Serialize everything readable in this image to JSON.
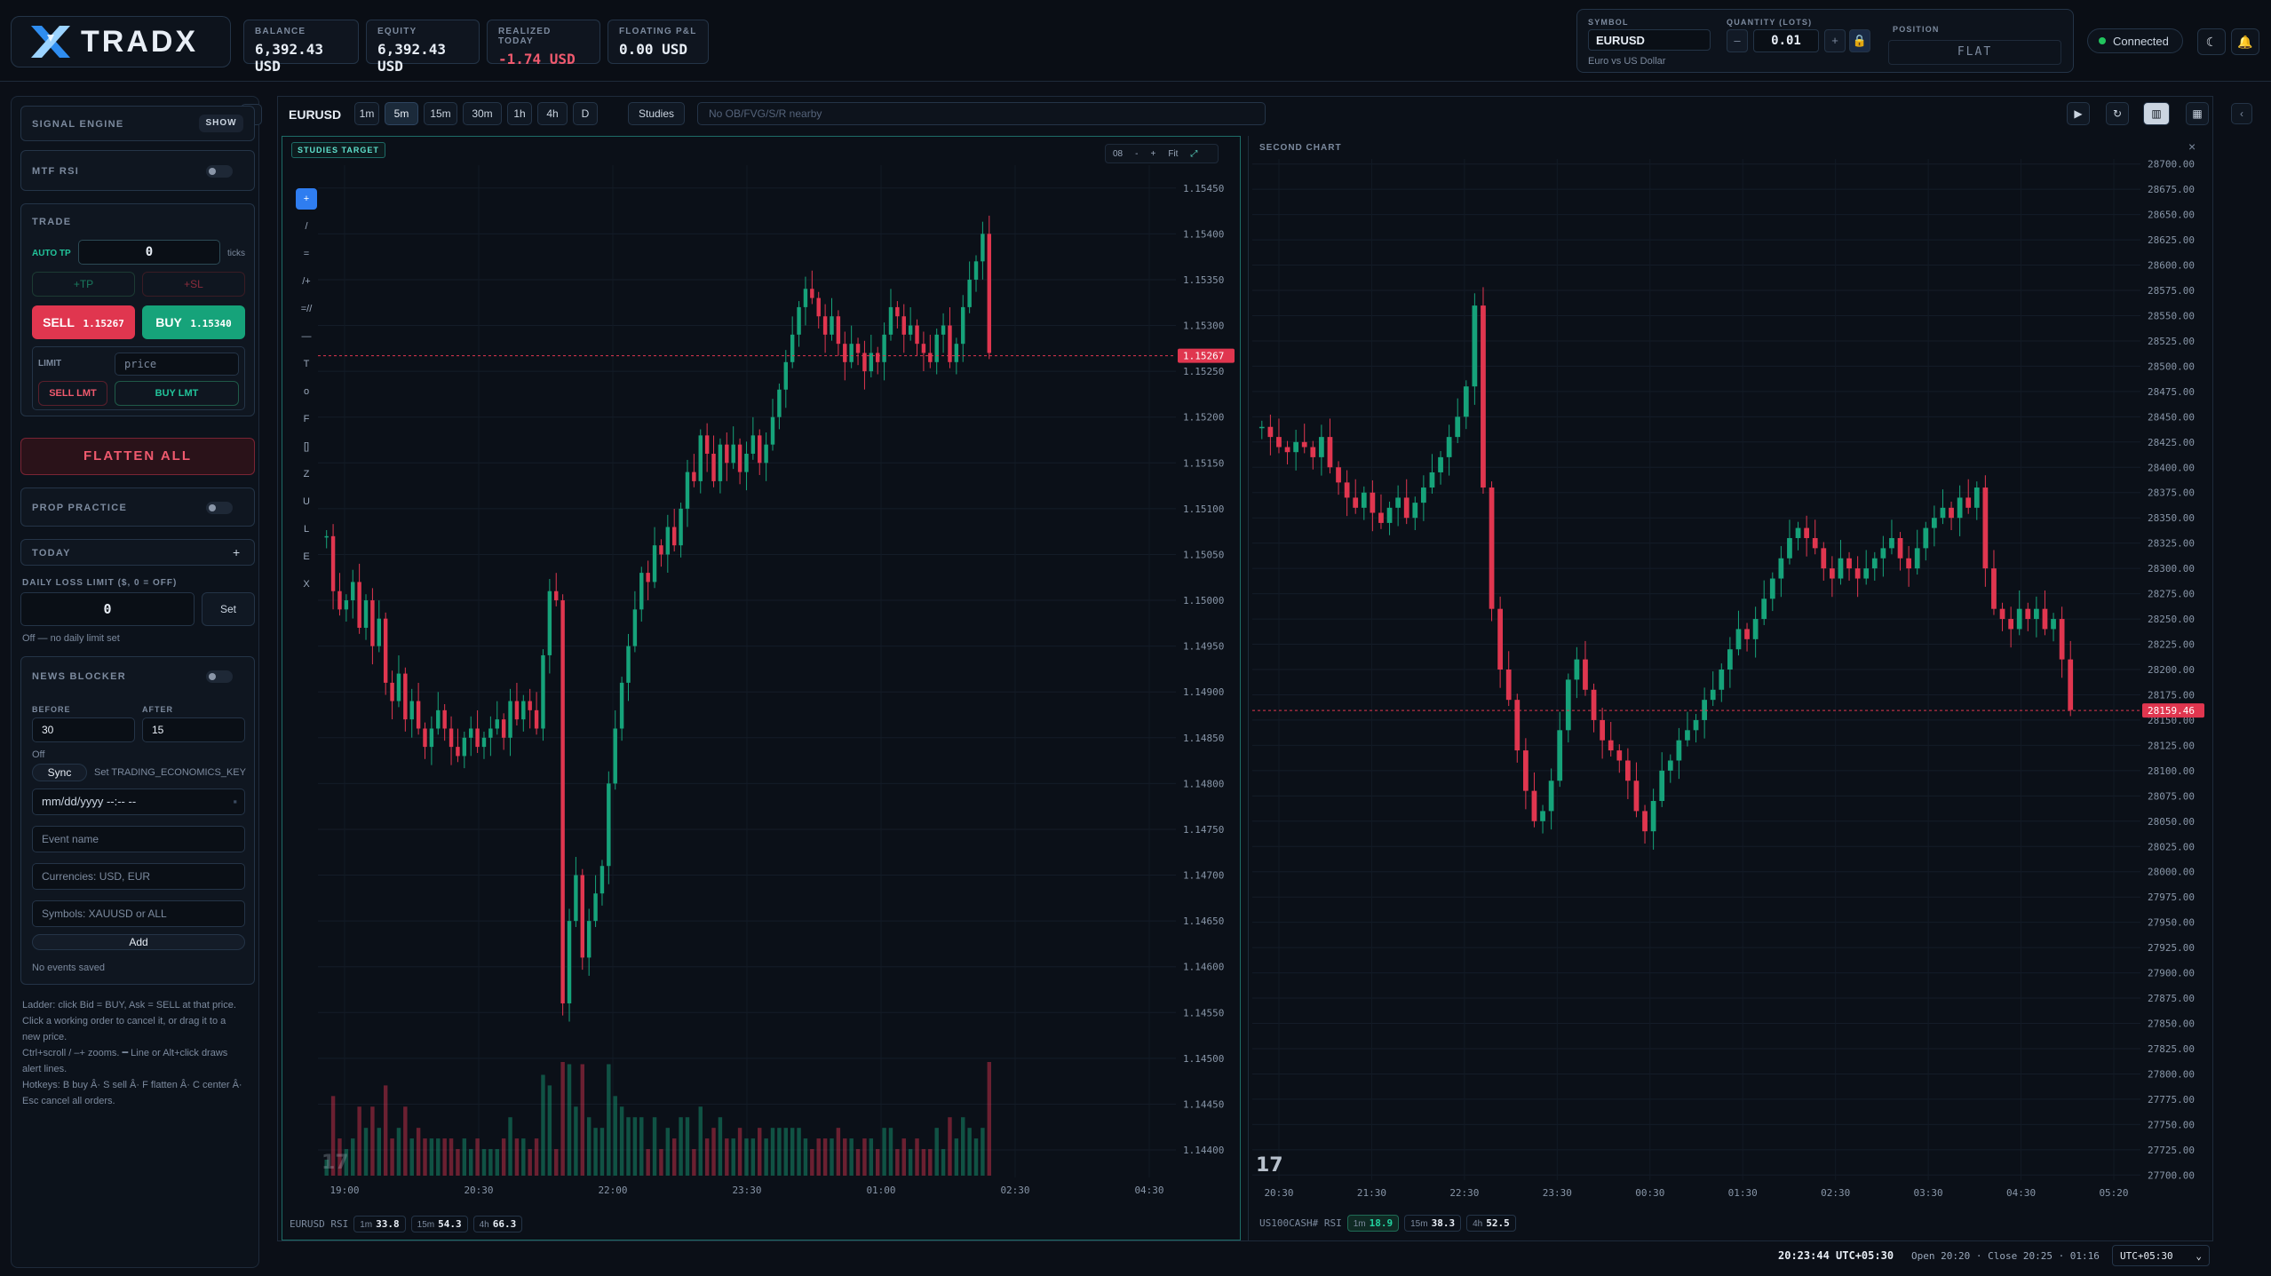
{
  "brand": {
    "name": "TRADX"
  },
  "stats": [
    {
      "label": "BALANCE",
      "value": "6,392.43 USD"
    },
    {
      "label": "EQUITY",
      "value": "6,392.43 USD"
    },
    {
      "label": "REALIZED TODAY",
      "value": "-1.74 USD"
    },
    {
      "label": "FLOATING P&L",
      "value": "0.00 USD"
    }
  ],
  "symbol_panel": {
    "symbol_label": "SYMBOL",
    "symbol": "EURUSD",
    "symbol_desc": "Euro vs US Dollar",
    "qty_label": "QUANTITY (LOTS)",
    "qty": "0.01",
    "minus": "–",
    "plus": "+",
    "position_label": "POSITION",
    "position": "FLAT"
  },
  "connection": "Connected",
  "left": {
    "signal_engine": "SIGNAL ENGINE",
    "show": "SHOW",
    "mtf_rsi": "MTF RSI",
    "trade": "TRADE",
    "auto_tp": "AUTO TP",
    "auto_tp_value": "0",
    "ticks": "ticks",
    "tp": "+TP",
    "sl": "+SL",
    "sell_label": "SELL",
    "sell_price": "1.15267",
    "buy_label": "BUY",
    "buy_price": "1.15340",
    "limit": "LIMIT",
    "price_placeholder": "price",
    "sell_lmt": "SELL LMT",
    "buy_lmt": "BUY LMT",
    "flatten_all": "FLATTEN ALL",
    "prop_practice": "PROP PRACTICE",
    "today": "TODAY",
    "today_plus": "+",
    "daily_loss_label": "DAILY LOSS LIMIT ($, 0 = OFF)",
    "daily_loss_value": "0",
    "set": "Set",
    "daily_loss_note": "Off — no daily limit set",
    "news_blocker": "NEWS BLOCKER",
    "before": "BEFORE",
    "after": "AFTER",
    "before_value": "30",
    "after_value": "15",
    "news_off": "Off",
    "sync": "Sync",
    "sync_note": "Set TRADING_ECONOMICS_KEY",
    "datetime_placeholder": "mm/dd/yyyy --:-- --",
    "event_placeholder": "Event name",
    "currencies_placeholder": "Currencies: USD, EUR",
    "symbols_placeholder": "Symbols: XAUUSD or ALL",
    "add": "Add",
    "no_events": "No events saved",
    "help": [
      "Ladder: click Bid = BUY, Ask = SELL at that price.",
      "Click a working order to cancel it, or drag it to a",
      "new price.",
      "Ctrl+scroll / –+ zooms. ━ Line or Alt+click draws",
      "alert lines.",
      "Hotkeys: B buy Â· S sell Â· F flatten Â· C center Â·",
      "Esc cancel all orders."
    ]
  },
  "chart_toolbar": {
    "symbol": "EURUSD",
    "timeframes": [
      "1m",
      "5m",
      "15m",
      "30m",
      "1h",
      "4h",
      "D"
    ],
    "active_tf": "5m",
    "studies": "Studies",
    "status": "No OB/FVG/S/R nearby"
  },
  "chart1": {
    "tag": "STUDIES TARGET",
    "controls": [
      "08",
      "-",
      "+",
      "Fit"
    ],
    "tools": [
      "+",
      "/",
      "=",
      "/+",
      "=//",
      "—",
      "T",
      "o",
      "F",
      "[]",
      "Z",
      "U",
      "L",
      "E",
      "X"
    ],
    "rsi_label": "EURUSD RSI",
    "rsi": [
      {
        "tf": "1m",
        "v": "33.8"
      },
      {
        "tf": "15m",
        "v": "54.3"
      },
      {
        "tf": "4h",
        "v": "66.3"
      }
    ]
  },
  "chart2": {
    "tag": "SECOND CHART",
    "close": "×",
    "rsi_label": "US100CASH# RSI",
    "rsi": [
      {
        "tf": "1m",
        "v": "18.9"
      },
      {
        "tf": "15m",
        "v": "38.3"
      },
      {
        "tf": "4h",
        "v": "52.5"
      }
    ]
  },
  "bottom": {
    "clock": "20:23:44 UTC+05:30",
    "session": "Open 20:20 · Close 20:25 · 01:16",
    "tz": "UTC+05:30"
  },
  "colors": {
    "up": "#16a37a",
    "down": "#e0364f",
    "accent": "#3b82f6"
  },
  "chart_data": [
    {
      "type": "candlestick",
      "symbol": "EURUSD",
      "timeframe": "5m",
      "y_ticks": [
        "1.15450",
        "1.15400",
        "1.15350",
        "1.15300",
        "1.15250",
        "1.15200",
        "1.15150",
        "1.15100",
        "1.15050",
        "1.15000",
        "1.14950",
        "1.14900",
        "1.14850",
        "1.14800",
        "1.14750",
        "1.14700",
        "1.14650",
        "1.14600",
        "1.14550",
        "1.14500",
        "1.14450",
        "1.14400"
      ],
      "ylim": [
        1.1437,
        1.15475
      ],
      "x_ticks": [
        "19:00",
        "20:30",
        "22:00",
        "23:30",
        "01:00",
        "02:30",
        "04:30"
      ],
      "last_price": "1.15267",
      "closes": [
        1.1507,
        1.1501,
        1.1499,
        1.15,
        1.1502,
        1.1497,
        1.15,
        1.1495,
        1.1498,
        1.1491,
        1.1489,
        1.1492,
        1.1487,
        1.1489,
        1.1486,
        1.1484,
        1.1486,
        1.1488,
        1.1486,
        1.1484,
        1.1483,
        1.1485,
        1.1486,
        1.1484,
        1.1485,
        1.1486,
        1.1487,
        1.1485,
        1.1489,
        1.1487,
        1.1489,
        1.1488,
        1.1486,
        1.1494,
        1.1501,
        1.15,
        1.1456,
        1.1465,
        1.147,
        1.1461,
        1.1465,
        1.1468,
        1.1471,
        1.148,
        1.1486,
        1.1491,
        1.1495,
        1.1499,
        1.1503,
        1.1502,
        1.1506,
        1.1505,
        1.1508,
        1.1506,
        1.151,
        1.1514,
        1.1513,
        1.1518,
        1.1516,
        1.1513,
        1.1517,
        1.1515,
        1.1517,
        1.1514,
        1.1516,
        1.1518,
        1.1515,
        1.1517,
        1.152,
        1.1523,
        1.1526,
        1.1529,
        1.1532,
        1.1534,
        1.1533,
        1.1531,
        1.1529,
        1.1531,
        1.1528,
        1.1526,
        1.1528,
        1.1527,
        1.1525,
        1.1527,
        1.1526,
        1.1529,
        1.1532,
        1.1531,
        1.1529,
        1.153,
        1.1528,
        1.1527,
        1.1526,
        1.1529,
        1.153,
        1.1526,
        1.1528,
        1.1532,
        1.1535,
        1.1537,
        1.154,
        1.1527
      ],
      "volume_shown": true
    },
    {
      "type": "candlestick",
      "symbol": "US100CASH#",
      "y_ticks": [
        "28700.00",
        "28675.00",
        "28650.00",
        "28625.00",
        "28600.00",
        "28575.00",
        "28550.00",
        "28525.00",
        "28500.00",
        "28475.00",
        "28450.00",
        "28425.00",
        "28400.00",
        "28375.00",
        "28350.00",
        "28325.00",
        "28300.00",
        "28275.00",
        "28250.00",
        "28225.00",
        "28200.00",
        "28175.00",
        "28150.00",
        "28125.00",
        "28100.00",
        "28075.00",
        "28050.00",
        "28025.00",
        "28000.00",
        "27975.00",
        "27950.00",
        "27925.00",
        "27900.00",
        "27875.00",
        "27850.00",
        "27825.00",
        "27800.00",
        "27775.00",
        "27750.00",
        "27725.00",
        "27700.00"
      ],
      "ylim": [
        27695,
        28705
      ],
      "x_ticks": [
        "20:30",
        "21:30",
        "22:30",
        "23:30",
        "00:30",
        "01:30",
        "02:30",
        "03:30",
        "04:30",
        "05:20"
      ],
      "last_price": "28159.46",
      "closes": [
        28440,
        28430,
        28420,
        28415,
        28425,
        28420,
        28410,
        28430,
        28400,
        28385,
        28370,
        28360,
        28375,
        28355,
        28345,
        28360,
        28370,
        28350,
        28365,
        28380,
        28395,
        28410,
        28430,
        28450,
        28480,
        28560,
        28380,
        28260,
        28200,
        28170,
        28120,
        28080,
        28050,
        28060,
        28090,
        28140,
        28190,
        28210,
        28180,
        28150,
        28130,
        28120,
        28110,
        28090,
        28060,
        28040,
        28070,
        28100,
        28110,
        28130,
        28140,
        28150,
        28170,
        28180,
        28200,
        28220,
        28240,
        28230,
        28250,
        28270,
        28290,
        28310,
        28330,
        28340,
        28330,
        28320,
        28300,
        28290,
        28310,
        28300,
        28290,
        28300,
        28310,
        28320,
        28330,
        28310,
        28300,
        28320,
        28340,
        28350,
        28360,
        28350,
        28370,
        28360,
        28380,
        28300,
        28260,
        28250,
        28240,
        28260,
        28250,
        28260,
        28240,
        28250,
        28210,
        28160
      ]
    }
  ]
}
